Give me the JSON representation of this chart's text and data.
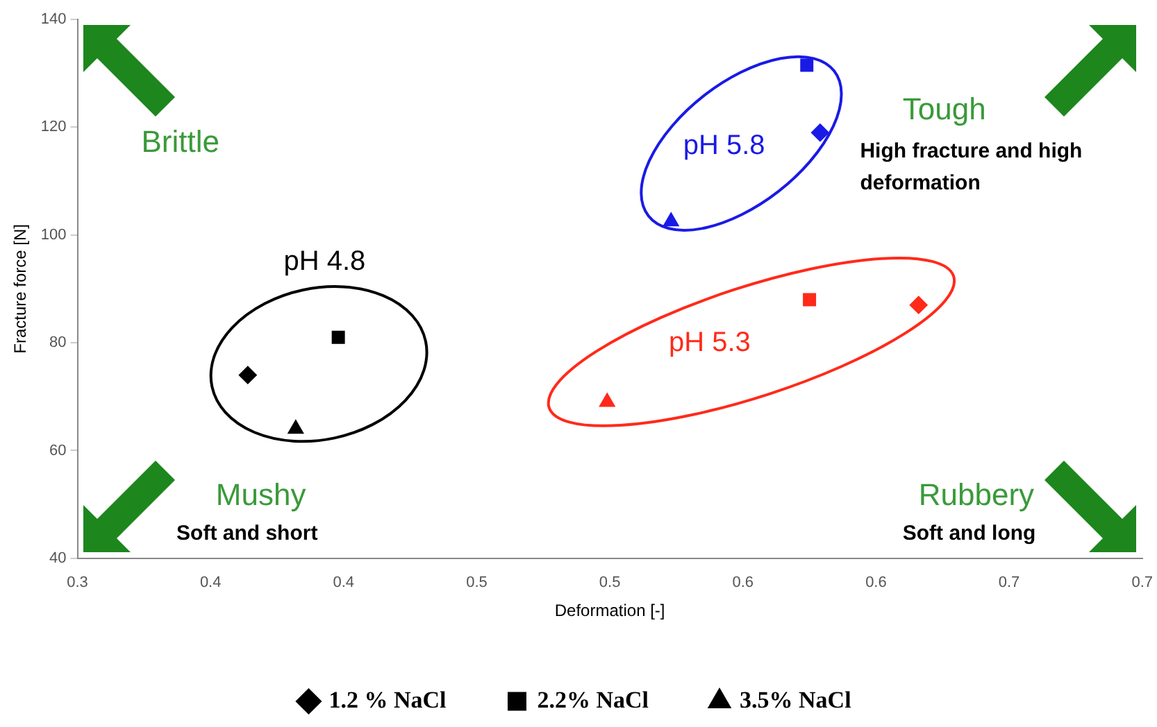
{
  "chart_data": {
    "type": "scatter",
    "xlabel": "Deformation [-]",
    "ylabel": "Fracture force [N]",
    "xlim": [
      0.3,
      0.7
    ],
    "ylim": [
      40,
      140
    ],
    "xticks": [
      0.3,
      {
        "value": 0.35,
        "label": "0.4"
      },
      0.4,
      {
        "value": 0.45,
        "label": "0.5"
      },
      0.5,
      {
        "value": 0.55,
        "label": "0.6"
      },
      0.6,
      {
        "value": 0.65,
        "label": "0.7"
      },
      0.7
    ],
    "yticks": [
      40,
      60,
      80,
      100,
      120,
      140
    ],
    "legend": "bottom",
    "series": [
      {
        "name": "1.2 % NaCl",
        "marker": "diamond",
        "color": "#000000",
        "colors": [
          "#000000",
          "#ff2a1a",
          "#1a1ae6"
        ],
        "x": [
          0.364,
          0.616,
          0.579
        ],
        "values": [
          74,
          87,
          119
        ]
      },
      {
        "name": "2.2% NaCl",
        "marker": "square",
        "color": "#000000",
        "colors": [
          "#000000",
          "#ff2a1a",
          "#1a1ae6"
        ],
        "x": [
          0.398,
          0.575,
          0.574
        ],
        "values": [
          81,
          88,
          131.5
        ]
      },
      {
        "name": "3.5% NaCl",
        "marker": "triangle",
        "color": "#000000",
        "colors": [
          "#000000",
          "#ff2a1a",
          "#1a1ae6"
        ],
        "x": [
          0.382,
          0.499,
          0.523
        ],
        "values": [
          64,
          69,
          102.5
        ]
      }
    ],
    "annotations": [
      "pH 4.8",
      "pH 5.3",
      "pH 5.8",
      "Brittle",
      "Tough",
      "High fracture and high deformation",
      "Mushy",
      "Soft and short",
      "Rubbery",
      "Soft and long"
    ]
  }
}
